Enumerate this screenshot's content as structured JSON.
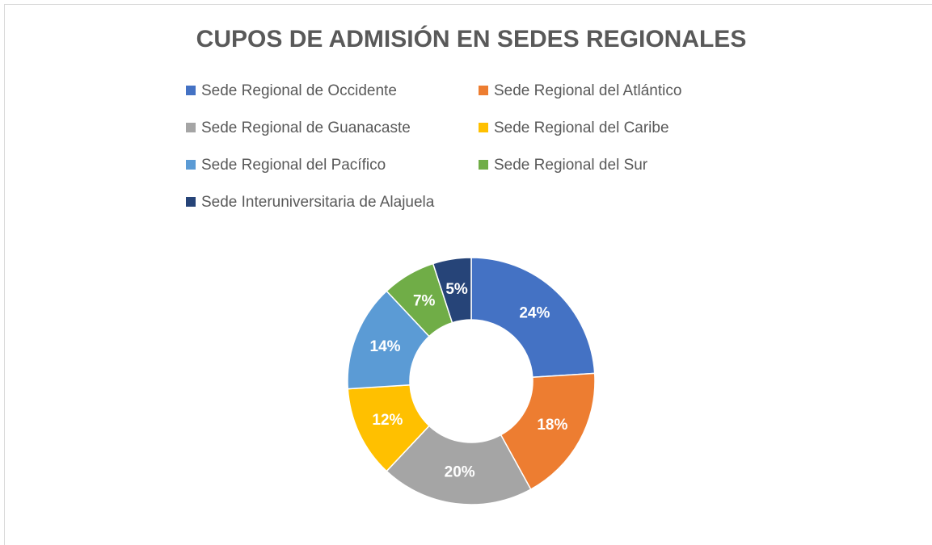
{
  "chart_data": {
    "type": "donut",
    "title": "CUPOS DE ADMISIÓN EN SEDES REGIONALES",
    "categories": [
      "Sede Regional de Occidente",
      "Sede Regional del Atlántico",
      "Sede Regional de Guanacaste",
      "Sede Regional del Caribe",
      "Sede Regional del Pacífico",
      "Sede Regional del Sur",
      "Sede Interuniversitaria de Alajuela"
    ],
    "values": [
      24,
      18,
      20,
      12,
      14,
      7,
      5
    ],
    "value_labels": [
      "24%",
      "18%",
      "20%",
      "12%",
      "14%",
      "7%",
      "5%"
    ],
    "colors": [
      "#4472c4",
      "#ed7d31",
      "#a5a5a5",
      "#ffc000",
      "#5b9bd5",
      "#70ad47",
      "#264478"
    ],
    "legend": "top"
  }
}
